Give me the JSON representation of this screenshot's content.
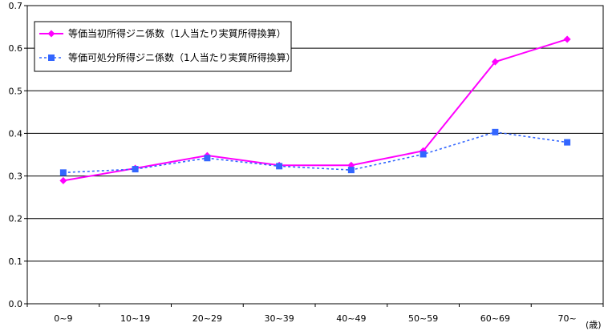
{
  "chart_data": {
    "type": "line",
    "categories": [
      "0~9",
      "10~19",
      "20~29",
      "30~39",
      "40~49",
      "50~59",
      "60~69",
      "70~"
    ],
    "x_unit_label": "(歳)",
    "ylim": [
      0,
      0.7
    ],
    "yticks": [
      "0.0",
      "0.1",
      "0.2",
      "0.3",
      "0.4",
      "0.5",
      "0.6",
      "0.7"
    ],
    "grid": true,
    "legend_placement": "top-left",
    "series": [
      {
        "name": "等価当初所得ジニ係数（1人当たり実質所得換算）",
        "color": "#ff00ff",
        "marker": "diamond",
        "line_style": "solid",
        "values": [
          0.289,
          0.318,
          0.348,
          0.325,
          0.325,
          0.359,
          0.568,
          0.621
        ]
      },
      {
        "name": "等価可処分所得ジニ係数（1人当たり実質所得換算）",
        "color": "#3366ff",
        "marker": "square",
        "line_style": "dotted",
        "values": [
          0.308,
          0.316,
          0.342,
          0.323,
          0.314,
          0.351,
          0.403,
          0.379
        ]
      }
    ]
  }
}
